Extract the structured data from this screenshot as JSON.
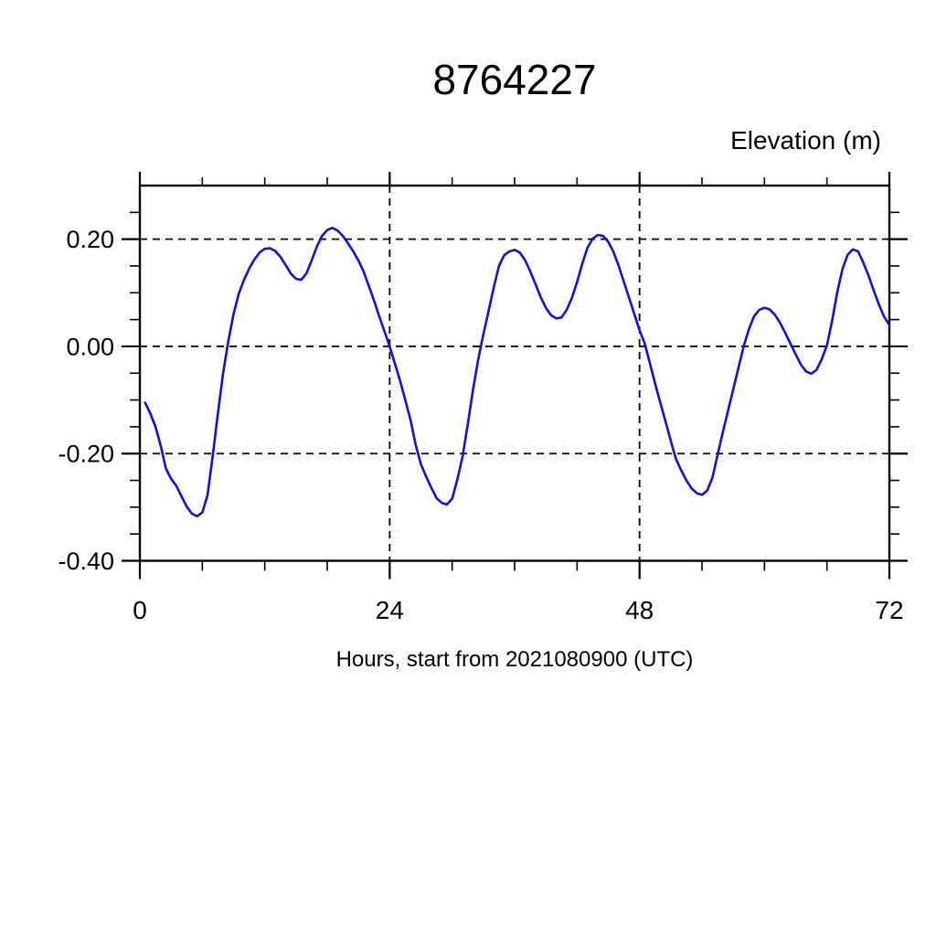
{
  "page": {
    "background": "#ffffff"
  },
  "chart_data": {
    "type": "line",
    "title": "8764227",
    "ylabel": "Elevation (m)",
    "xlabel": "Hours, start from 2021080900 (UTC)",
    "xlim": [
      0,
      72
    ],
    "ylim": [
      -0.4,
      0.3
    ],
    "x_ticks_major": [
      0,
      24,
      48,
      72
    ],
    "x_tick_labels": [
      "0",
      "24",
      "48",
      "72"
    ],
    "x_minor_step": 6,
    "y_ticks_major": [
      0.2,
      0.0,
      -0.2,
      -0.4
    ],
    "y_tick_labels": [
      "0.20",
      "0.00",
      "-0.20",
      "-0.40"
    ],
    "y_minor_step": 0.05,
    "grid": {
      "style": "dashed",
      "color": "#000000",
      "at_major_ticks": true
    },
    "frame_color": "#000000",
    "line_color": "#1010e0",
    "series": [
      {
        "name": "elevation",
        "x": [
          0.5,
          1,
          1.5,
          2,
          2.5,
          3,
          3.5,
          4,
          4.5,
          5,
          5.5,
          6,
          6.5,
          7,
          7.5,
          8,
          8.5,
          9,
          9.5,
          10,
          10.5,
          11,
          11.5,
          12,
          12.5,
          13,
          13.5,
          14,
          14.5,
          15,
          15.5,
          16,
          16.5,
          17,
          17.5,
          18,
          18.5,
          19,
          19.5,
          20,
          20.5,
          21,
          21.5,
          22,
          22.5,
          23,
          23.5,
          24,
          24.5,
          25,
          25.5,
          26,
          26.5,
          27,
          27.5,
          28,
          28.5,
          29,
          29.5,
          30,
          30.5,
          31,
          31.5,
          32,
          32.5,
          33,
          33.5,
          34,
          34.5,
          35,
          35.5,
          36,
          36.5,
          37,
          37.5,
          38,
          38.5,
          39,
          39.5,
          40,
          40.5,
          41,
          41.5,
          42,
          42.5,
          43,
          43.5,
          44,
          44.5,
          45,
          45.5,
          46,
          46.5,
          47,
          47.5,
          48,
          48.5,
          49,
          49.5,
          50,
          50.5,
          51,
          51.5,
          52,
          52.5,
          53,
          53.5,
          54,
          54.5,
          55,
          55.5,
          56,
          56.5,
          57,
          57.5,
          58,
          58.5,
          59,
          59.5,
          60,
          60.5,
          61,
          61.5,
          62,
          62.5,
          63,
          63.5,
          64,
          64.5,
          65,
          65.5,
          66,
          66.5,
          67,
          67.5,
          68,
          68.5,
          69,
          69.5,
          70,
          70.5,
          71,
          71.5,
          72
        ],
        "y": [
          -0.105,
          -0.125,
          -0.15,
          -0.185,
          -0.228,
          -0.247,
          -0.26,
          -0.28,
          -0.299,
          -0.312,
          -0.317,
          -0.31,
          -0.278,
          -0.205,
          -0.125,
          -0.05,
          0.01,
          0.06,
          0.098,
          0.124,
          0.145,
          0.162,
          0.175,
          0.182,
          0.183,
          0.178,
          0.167,
          0.152,
          0.136,
          0.126,
          0.124,
          0.136,
          0.16,
          0.186,
          0.206,
          0.217,
          0.221,
          0.216,
          0.206,
          0.192,
          0.177,
          0.16,
          0.139,
          0.112,
          0.085,
          0.056,
          0.028,
          0.0,
          -0.032,
          -0.064,
          -0.1,
          -0.137,
          -0.184,
          -0.22,
          -0.243,
          -0.264,
          -0.283,
          -0.292,
          -0.295,
          -0.284,
          -0.248,
          -0.205,
          -0.145,
          -0.082,
          -0.025,
          0.022,
          0.066,
          0.11,
          0.15,
          0.17,
          0.177,
          0.18,
          0.175,
          0.161,
          0.14,
          0.116,
          0.092,
          0.072,
          0.058,
          0.052,
          0.054,
          0.068,
          0.09,
          0.12,
          0.154,
          0.184,
          0.201,
          0.208,
          0.206,
          0.195,
          0.176,
          0.15,
          0.12,
          0.09,
          0.06,
          0.03,
          0.005,
          -0.032,
          -0.07,
          -0.105,
          -0.14,
          -0.176,
          -0.21,
          -0.231,
          -0.25,
          -0.265,
          -0.274,
          -0.277,
          -0.269,
          -0.245,
          -0.202,
          -0.16,
          -0.12,
          -0.08,
          -0.04,
          0.0,
          0.032,
          0.056,
          0.068,
          0.072,
          0.069,
          0.059,
          0.044,
          0.025,
          0.005,
          -0.015,
          -0.034,
          -0.047,
          -0.051,
          -0.044,
          -0.024,
          0.002,
          0.048,
          0.102,
          0.145,
          0.171,
          0.181,
          0.177,
          0.156,
          0.132,
          0.104,
          0.078,
          0.055,
          0.04
        ]
      }
    ]
  }
}
